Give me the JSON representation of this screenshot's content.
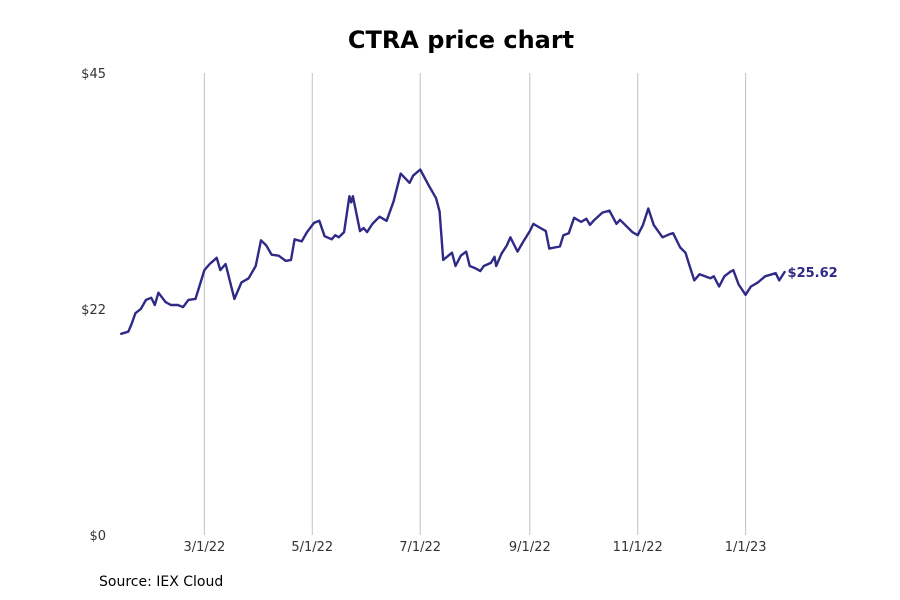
{
  "title": "CTRA price chart",
  "source": "Source: IEX Cloud",
  "chart_data": {
    "type": "line",
    "title": "CTRA price chart",
    "xlabel": "",
    "ylabel": "",
    "x_range": [
      "2022-01-01",
      "2023-03-01"
    ],
    "ylim": [
      0,
      45
    ],
    "y_ticks": [
      {
        "value": 0,
        "label": "$0"
      },
      {
        "value": 22,
        "label": "$22"
      },
      {
        "value": 45,
        "label": "$45"
      }
    ],
    "x_ticks": [
      {
        "date": "2022-03-01",
        "label": "3/1/22"
      },
      {
        "date": "2022-05-01",
        "label": "5/1/22"
      },
      {
        "date": "2022-07-01",
        "label": "7/1/22"
      },
      {
        "date": "2022-09-01",
        "label": "9/1/22"
      },
      {
        "date": "2022-11-01",
        "label": "11/1/22"
      },
      {
        "date": "2023-01-01",
        "label": "1/1/23"
      }
    ],
    "grid": "vertical",
    "line_color": "#2e2a85",
    "grid_color": "#c0c0c0",
    "end_label": "$25.62",
    "series": [
      {
        "values": [
          [
            "2022-01-13",
            19.6
          ],
          [
            "2022-01-17",
            19.8
          ],
          [
            "2022-01-19",
            20.6
          ],
          [
            "2022-01-21",
            21.6
          ],
          [
            "2022-01-24",
            22.0
          ],
          [
            "2022-01-27",
            22.9
          ],
          [
            "2022-01-30",
            23.1
          ],
          [
            "2022-02-01",
            22.4
          ],
          [
            "2022-02-03",
            23.6
          ],
          [
            "2022-02-07",
            22.7
          ],
          [
            "2022-02-10",
            22.4
          ],
          [
            "2022-02-14",
            22.4
          ],
          [
            "2022-02-17",
            22.2
          ],
          [
            "2022-02-20",
            22.9
          ],
          [
            "2022-02-24",
            23.0
          ],
          [
            "2022-03-01",
            25.8
          ],
          [
            "2022-03-04",
            26.4
          ],
          [
            "2022-03-08",
            27.0
          ],
          [
            "2022-03-10",
            25.8
          ],
          [
            "2022-03-13",
            26.4
          ],
          [
            "2022-03-18",
            23.0
          ],
          [
            "2022-03-22",
            24.6
          ],
          [
            "2022-03-26",
            25.0
          ],
          [
            "2022-03-30",
            26.2
          ],
          [
            "2022-04-02",
            28.7
          ],
          [
            "2022-04-05",
            28.2
          ],
          [
            "2022-04-08",
            27.3
          ],
          [
            "2022-04-12",
            27.2
          ],
          [
            "2022-04-16",
            26.7
          ],
          [
            "2022-04-19",
            26.8
          ],
          [
            "2022-04-21",
            28.8
          ],
          [
            "2022-04-25",
            28.6
          ],
          [
            "2022-04-28",
            29.5
          ],
          [
            "2022-05-02",
            30.4
          ],
          [
            "2022-05-05",
            30.6
          ],
          [
            "2022-05-08",
            29.1
          ],
          [
            "2022-05-12",
            28.8
          ],
          [
            "2022-05-14",
            29.2
          ],
          [
            "2022-05-16",
            29.0
          ],
          [
            "2022-05-19",
            29.5
          ],
          [
            "2022-05-22",
            33.0
          ],
          [
            "2022-05-23",
            32.4
          ],
          [
            "2022-05-24",
            33.0
          ],
          [
            "2022-05-28",
            29.6
          ],
          [
            "2022-05-30",
            29.9
          ],
          [
            "2022-06-01",
            29.5
          ],
          [
            "2022-06-04",
            30.3
          ],
          [
            "2022-06-08",
            31.0
          ],
          [
            "2022-06-12",
            30.6
          ],
          [
            "2022-06-16",
            32.5
          ],
          [
            "2022-06-20",
            35.2
          ],
          [
            "2022-06-25",
            34.3
          ],
          [
            "2022-06-27",
            35.0
          ],
          [
            "2022-07-01",
            35.6
          ],
          [
            "2022-07-06",
            34.0
          ],
          [
            "2022-07-10",
            32.8
          ],
          [
            "2022-07-12",
            31.5
          ],
          [
            "2022-07-14",
            26.8
          ],
          [
            "2022-07-19",
            27.5
          ],
          [
            "2022-07-21",
            26.2
          ],
          [
            "2022-07-24",
            27.2
          ],
          [
            "2022-07-27",
            27.6
          ],
          [
            "2022-07-29",
            26.2
          ],
          [
            "2022-08-01",
            26.0
          ],
          [
            "2022-08-04",
            25.7
          ],
          [
            "2022-08-06",
            26.2
          ],
          [
            "2022-08-10",
            26.5
          ],
          [
            "2022-08-12",
            27.1
          ],
          [
            "2022-08-13",
            26.2
          ],
          [
            "2022-08-16",
            27.4
          ],
          [
            "2022-08-19",
            28.2
          ],
          [
            "2022-08-21",
            29.0
          ],
          [
            "2022-08-25",
            27.6
          ],
          [
            "2022-08-28",
            28.5
          ],
          [
            "2022-09-01",
            29.6
          ],
          [
            "2022-09-03",
            30.3
          ],
          [
            "2022-09-05",
            30.1
          ],
          [
            "2022-09-10",
            29.6
          ],
          [
            "2022-09-12",
            27.9
          ],
          [
            "2022-09-15",
            28.0
          ],
          [
            "2022-09-18",
            28.1
          ],
          [
            "2022-09-20",
            29.2
          ],
          [
            "2022-09-23",
            29.4
          ],
          [
            "2022-09-26",
            30.9
          ],
          [
            "2022-09-30",
            30.5
          ],
          [
            "2022-10-03",
            30.8
          ],
          [
            "2022-10-05",
            30.2
          ],
          [
            "2022-10-07",
            30.6
          ],
          [
            "2022-10-12",
            31.4
          ],
          [
            "2022-10-16",
            31.6
          ],
          [
            "2022-10-20",
            30.3
          ],
          [
            "2022-10-22",
            30.7
          ],
          [
            "2022-10-29",
            29.5
          ],
          [
            "2022-11-01",
            29.2
          ],
          [
            "2022-11-04",
            30.2
          ],
          [
            "2022-11-07",
            31.8
          ],
          [
            "2022-11-10",
            30.2
          ],
          [
            "2022-11-15",
            29.0
          ],
          [
            "2022-11-19",
            29.3
          ],
          [
            "2022-11-21",
            29.4
          ],
          [
            "2022-11-25",
            28.0
          ],
          [
            "2022-11-28",
            27.5
          ],
          [
            "2022-11-30",
            26.4
          ],
          [
            "2022-12-03",
            24.8
          ],
          [
            "2022-12-06",
            25.4
          ],
          [
            "2022-12-09",
            25.2
          ],
          [
            "2022-12-12",
            25.0
          ],
          [
            "2022-12-14",
            25.2
          ],
          [
            "2022-12-17",
            24.2
          ],
          [
            "2022-12-20",
            25.2
          ],
          [
            "2022-12-23",
            25.6
          ],
          [
            "2022-12-25",
            25.8
          ],
          [
            "2022-12-28",
            24.4
          ],
          [
            "2023-01-01",
            23.4
          ],
          [
            "2023-01-04",
            24.2
          ],
          [
            "2023-01-08",
            24.6
          ],
          [
            "2023-01-12",
            25.2
          ],
          [
            "2023-01-16",
            25.4
          ],
          [
            "2023-01-18",
            25.5
          ],
          [
            "2023-01-20",
            24.8
          ],
          [
            "2023-01-23",
            25.62
          ]
        ]
      }
    ]
  }
}
